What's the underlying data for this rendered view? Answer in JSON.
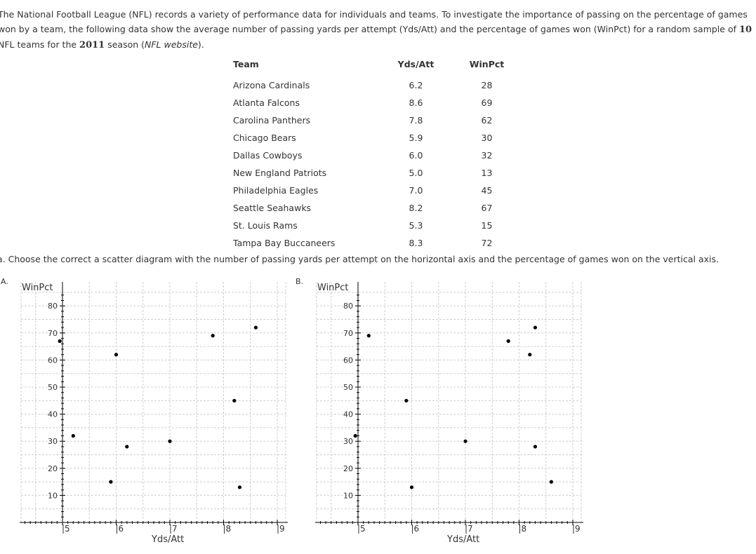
{
  "problem": {
    "intro_1": "The National Football League (NFL) records a variety of performance data for individuals and teams. To investigate the importance of passing on the percentage of games won by a team, the following data show the average number of passing yards per attempt (Yds/Att) and the percentage of games won (WinPct) for a random sample of ",
    "sample_size": "10",
    "intro_2": " NFL teams for the ",
    "season": "2011",
    "intro_3": " season (",
    "source": "NFL website",
    "intro_4": ").",
    "question": "a. Choose the correct a scatter diagram with the number of passing yards per attempt on the horizontal axis and the percentage of games won on the vertical axis."
  },
  "table": {
    "headers": [
      "Team",
      "Yds/Att",
      "WinPct"
    ],
    "rows": [
      [
        "Arizona Cardinals",
        "6.2",
        "28"
      ],
      [
        "Atlanta Falcons",
        "8.6",
        "69"
      ],
      [
        "Carolina Panthers",
        "7.8",
        "62"
      ],
      [
        "Chicago Bears",
        "5.9",
        "30"
      ],
      [
        "Dallas Cowboys",
        "6.0",
        "32"
      ],
      [
        "New England Patriots",
        "5.0",
        "13"
      ],
      [
        "Philadelphia Eagles",
        "7.0",
        "45"
      ],
      [
        "Seattle Seahawks",
        "8.2",
        "67"
      ],
      [
        "St. Louis Rams",
        "5.3",
        "15"
      ],
      [
        "Tampa Bay Buccaneers",
        "8.3",
        "72"
      ]
    ]
  },
  "chart_data": [
    {
      "type": "scatter",
      "option_label": "A.",
      "xlabel": "Yds/Att",
      "ylabel": "WinPct",
      "xlim": [
        4,
        9
      ],
      "ylim": [
        0,
        80
      ],
      "xticks": [
        5,
        6,
        7,
        8,
        9
      ],
      "yticks": [
        10,
        20,
        30,
        40,
        50,
        60,
        70,
        80
      ],
      "grid": true,
      "points": [
        {
          "x": 4.95,
          "y": 67
        },
        {
          "x": 5.2,
          "y": 32
        },
        {
          "x": 5.9,
          "y": 15
        },
        {
          "x": 6.0,
          "y": 62
        },
        {
          "x": 6.2,
          "y": 28
        },
        {
          "x": 7.0,
          "y": 30
        },
        {
          "x": 7.8,
          "y": 69
        },
        {
          "x": 8.2,
          "y": 45
        },
        {
          "x": 8.3,
          "y": 13
        },
        {
          "x": 8.6,
          "y": 72
        }
      ]
    },
    {
      "type": "scatter",
      "option_label": "B.",
      "xlabel": "Yds/Att",
      "ylabel": "WinPct",
      "xlim": [
        4,
        9
      ],
      "ylim": [
        0,
        80
      ],
      "xticks": [
        5,
        6,
        7,
        8,
        9
      ],
      "yticks": [
        10,
        20,
        30,
        40,
        50,
        60,
        70,
        80
      ],
      "grid": true,
      "points": [
        {
          "x": 4.95,
          "y": 32
        },
        {
          "x": 5.2,
          "y": 69
        },
        {
          "x": 5.9,
          "y": 45
        },
        {
          "x": 6.0,
          "y": 13
        },
        {
          "x": 7.0,
          "y": 30
        },
        {
          "x": 7.8,
          "y": 67
        },
        {
          "x": 8.2,
          "y": 62
        },
        {
          "x": 8.3,
          "y": 72
        },
        {
          "x": 8.3,
          "y": 28
        },
        {
          "x": 8.6,
          "y": 15
        }
      ]
    }
  ]
}
